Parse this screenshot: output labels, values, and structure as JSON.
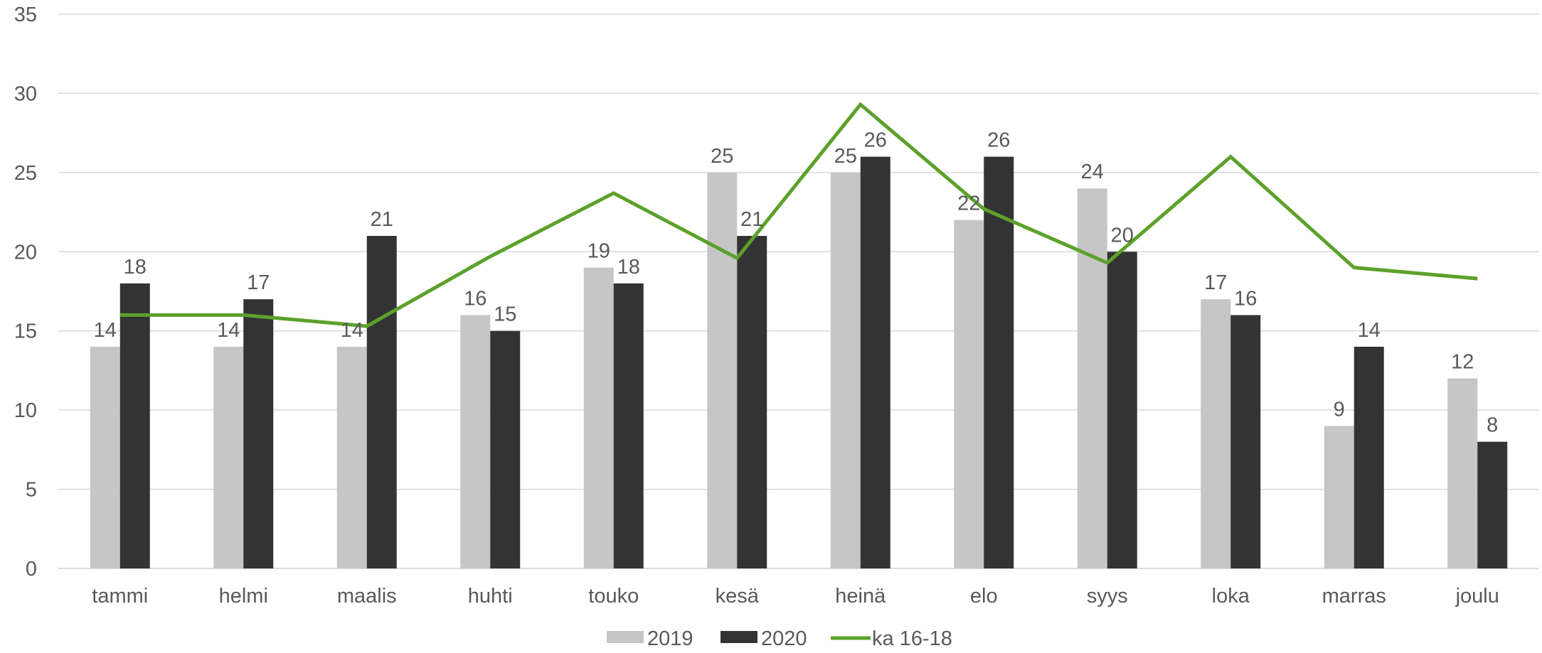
{
  "chart_data": {
    "type": "bar",
    "categories": [
      "tammi",
      "helmi",
      "maalis",
      "huhti",
      "touko",
      "kesä",
      "heinä",
      "elo",
      "syys",
      "loka",
      "marras",
      "joulu"
    ],
    "series": [
      {
        "name": "2019",
        "type": "bar",
        "color": "#c6c6c6",
        "values": [
          14,
          14,
          14,
          16,
          19,
          25,
          25,
          22,
          24,
          17,
          9,
          12
        ]
      },
      {
        "name": "2020",
        "type": "bar",
        "color": "#333333",
        "values": [
          18,
          17,
          21,
          15,
          18,
          21,
          26,
          26,
          20,
          16,
          14,
          8
        ]
      },
      {
        "name": "ka 16-18",
        "type": "line",
        "color": "#5ca12a",
        "values": [
          16,
          16,
          15.3,
          19.7,
          23.7,
          19.6,
          29.3,
          22.7,
          19.3,
          26,
          19,
          18.3
        ]
      }
    ],
    "y_ticks": [
      "0",
      "5",
      "10",
      "15",
      "20",
      "25",
      "30",
      "35"
    ],
    "ylim": [
      0,
      35
    ],
    "grid": true,
    "legend_position": "bottom",
    "data_labels": "bars only",
    "colors": {
      "grid": "#d9d9d9",
      "text": "#595959"
    }
  }
}
